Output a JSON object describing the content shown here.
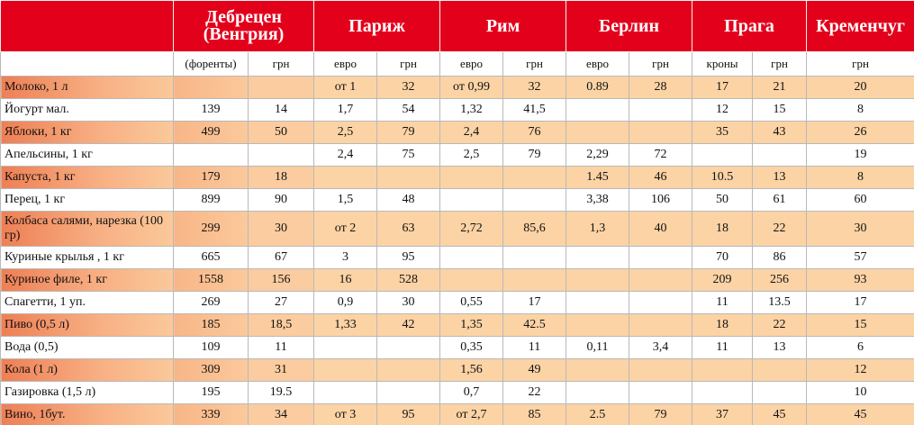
{
  "header": {
    "cities": [
      "Дебрецен (Венгрия)",
      "Париж",
      "Рим",
      "Берлин",
      "Прага",
      "Кременчуг"
    ],
    "units": [
      "(форенты)",
      "грн",
      "евро",
      "грн",
      "евро",
      "грн",
      "евро",
      "грн",
      "кроны",
      "грн",
      "грн"
    ]
  },
  "table": {
    "rows": [
      {
        "label": "Молоко, 1 л",
        "cells": [
          null,
          null,
          "от 1",
          "32",
          "от  0,99",
          "32",
          "0.89",
          "28",
          "17",
          "21",
          "20"
        ]
      },
      {
        "label": "Йогурт мал.",
        "cells": [
          "139",
          "14",
          "1,7",
          "54",
          "1,32",
          "41,5",
          null,
          null,
          "12",
          "15",
          "8"
        ]
      },
      {
        "label": "Яблоки, 1 кг",
        "cells": [
          "499",
          "50",
          "2,5",
          "79",
          "2,4",
          "76",
          null,
          null,
          "35",
          "43",
          "26"
        ]
      },
      {
        "label": "Апельсины, 1 кг",
        "cells": [
          null,
          null,
          "2,4",
          "75",
          "2,5",
          "79",
          "2,29",
          "72",
          null,
          null,
          "19"
        ]
      },
      {
        "label": "Капуста, 1 кг",
        "cells": [
          "179",
          "18",
          null,
          null,
          null,
          null,
          "1.45",
          "46",
          "10.5",
          "13",
          "8"
        ]
      },
      {
        "label": "Перец, 1 кг",
        "cells": [
          "899",
          "90",
          "1,5",
          "48",
          null,
          null,
          "3,38",
          "106",
          "50",
          "61",
          "60"
        ]
      },
      {
        "label": "Колбаса салями, нарезка (100 гр)",
        "cells": [
          "299",
          "30",
          "от 2",
          "63",
          "2,72",
          "85,6",
          "1,3",
          "40",
          "18",
          "22",
          "30"
        ]
      },
      {
        "label": "Куриные крылья , 1 кг",
        "cells": [
          "665",
          "67",
          "3",
          "95",
          null,
          null,
          null,
          null,
          "70",
          "86",
          "57"
        ]
      },
      {
        "label": "Куриное филе, 1 кг",
        "cells": [
          "1558",
          "156",
          "16",
          "528",
          null,
          null,
          null,
          null,
          "209",
          "256",
          "93"
        ]
      },
      {
        "label": "Спагетти, 1 уп.",
        "cells": [
          "269",
          "27",
          "0,9",
          "30",
          "0,55",
          "17",
          null,
          null,
          "11",
          "13.5",
          "17"
        ]
      },
      {
        "label": "Пиво (0,5 л)",
        "cells": [
          "185",
          "18,5",
          "1,33",
          "42",
          "1,35",
          "42.5",
          null,
          null,
          "18",
          "22",
          "15"
        ]
      },
      {
        "label": "Вода (0,5)",
        "cells": [
          "109",
          "11",
          null,
          null,
          "0,35",
          "11",
          "0,11",
          "3,4",
          "11",
          "13",
          "6"
        ]
      },
      {
        "label": "Кола (1 л)",
        "cells": [
          "309",
          "31",
          null,
          null,
          "1,56",
          "49",
          null,
          null,
          null,
          null,
          "12"
        ]
      },
      {
        "label": "Газировка (1,5 л)",
        "cells": [
          "195",
          "19.5",
          null,
          null,
          "0,7",
          "22",
          null,
          null,
          null,
          null,
          "10"
        ]
      },
      {
        "label": "Вино, 1бут.",
        "cells": [
          "339",
          "34",
          "от 3",
          "95",
          "от 2,7",
          "85",
          "2.5",
          "79",
          "37",
          "45",
          "45"
        ]
      }
    ]
  }
}
